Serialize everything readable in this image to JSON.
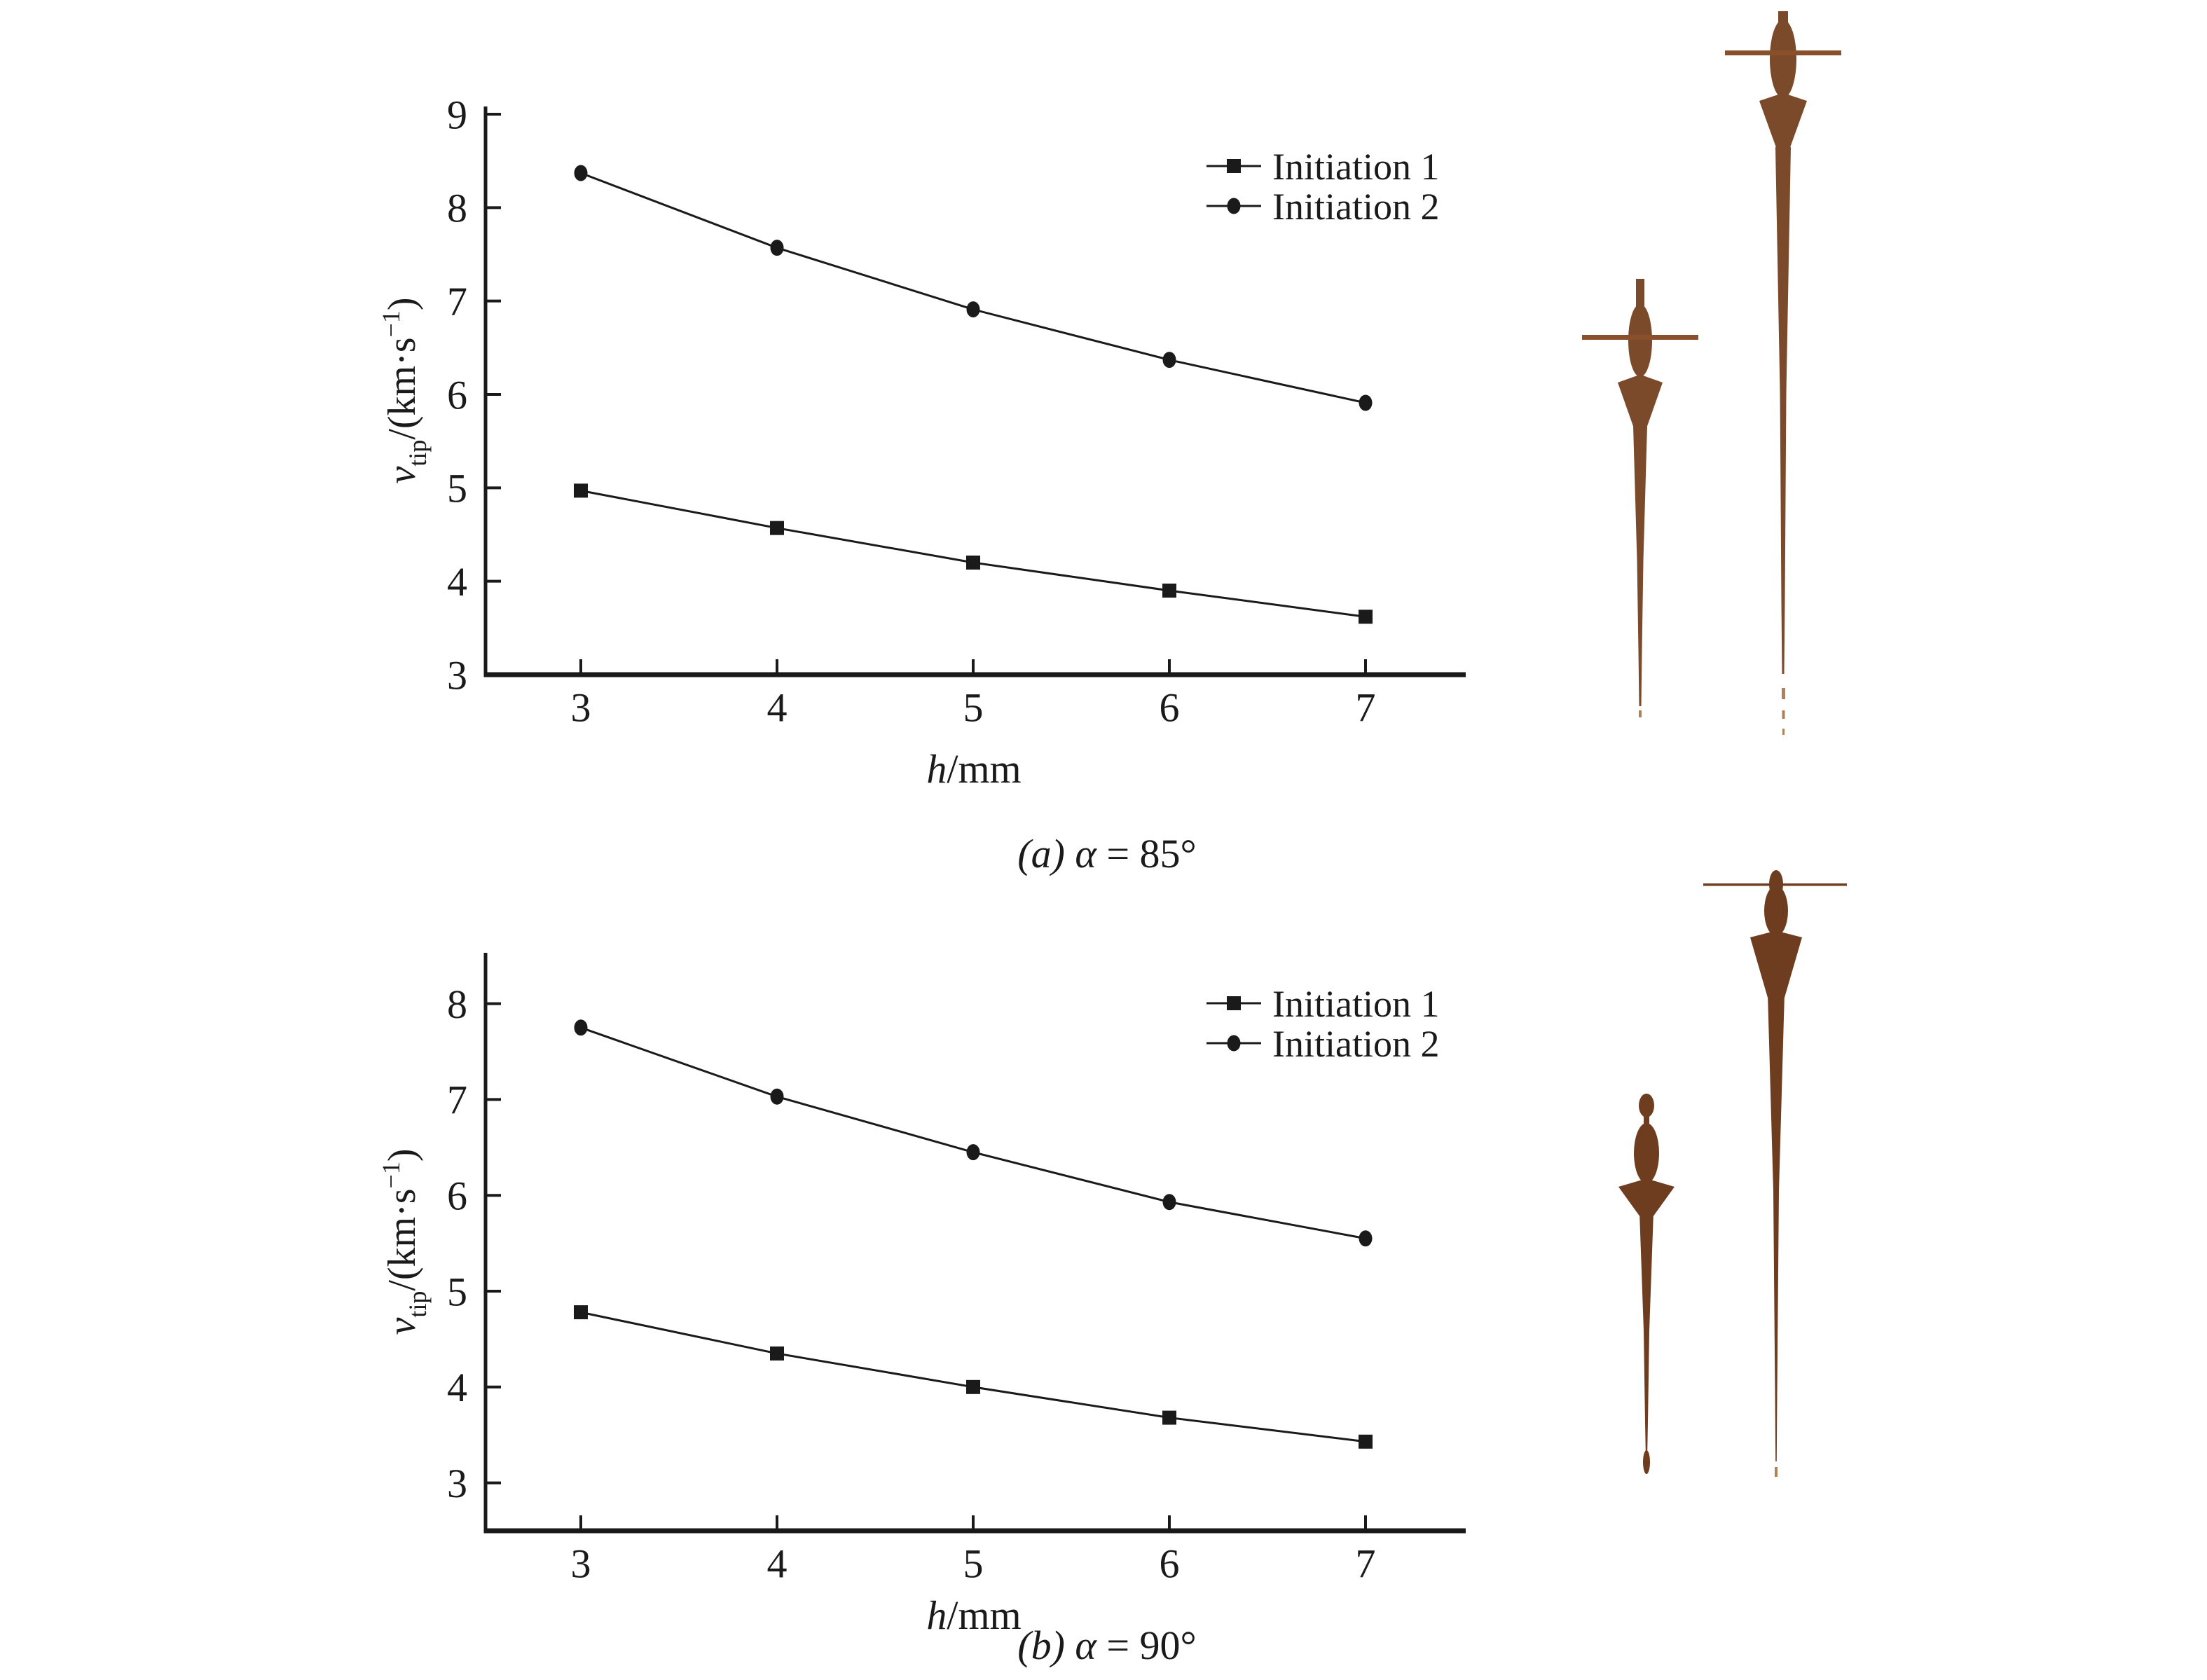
{
  "figure": {
    "background": "#ffffff",
    "text_color": "#1a1a1a"
  },
  "chart_data": [
    {
      "type": "line",
      "caption": "(a) α = 85°",
      "caption_parts": {
        "prefix": "(a) ",
        "alpha": "α",
        "suffix": " = 85°"
      },
      "xlabel": "h/mm",
      "xlabel_parts": {
        "var": "h",
        "unit": "/mm"
      },
      "ylabel": "v_tip/(km·s⁻¹)",
      "ylabel_parts": {
        "var": "v",
        "sub": "tip",
        "mid": "/(km·s",
        "sup": "−1",
        "end": ")"
      },
      "x": [
        3,
        4,
        5,
        6,
        7
      ],
      "xticks": [
        3,
        4,
        5,
        6,
        7
      ],
      "yticks": [
        3,
        4,
        5,
        6,
        7,
        8,
        9
      ],
      "xlim": [
        2.5,
        7.5
      ],
      "ylim": [
        3,
        9
      ],
      "grid": false,
      "legend_position": "upper right",
      "series": [
        {
          "name": "Initiation 1",
          "marker": "square",
          "color": "#1a1a1a",
          "values": [
            4.97,
            4.57,
            4.2,
            3.9,
            3.62
          ]
        },
        {
          "name": "Initiation 2",
          "marker": "circle",
          "color": "#1a1a1a",
          "values": [
            8.37,
            7.57,
            6.91,
            6.37,
            5.91
          ]
        }
      ]
    },
    {
      "type": "line",
      "caption": "(b) α = 90°",
      "caption_parts": {
        "prefix": "(b) ",
        "alpha": "α",
        "suffix": " = 90°"
      },
      "xlabel": "h/mm",
      "xlabel_parts": {
        "var": "h",
        "unit": "/mm"
      },
      "ylabel": "v_tip/(km·s⁻¹)",
      "ylabel_parts": {
        "var": "v",
        "sub": "tip",
        "mid": "/(km·s",
        "sup": "−1",
        "end": ")"
      },
      "x": [
        3,
        4,
        5,
        6,
        7
      ],
      "xticks": [
        3,
        4,
        5,
        6,
        7
      ],
      "yticks": [
        3,
        4,
        5,
        6,
        7,
        8
      ],
      "xlim": [
        2.5,
        7.5
      ],
      "ylim": [
        2.5,
        8.5
      ],
      "grid": false,
      "legend_position": "upper right",
      "series": [
        {
          "name": "Initiation 1",
          "marker": "square",
          "color": "#1a1a1a",
          "values": [
            4.78,
            4.35,
            4.0,
            3.68,
            3.43
          ]
        },
        {
          "name": "Initiation 2",
          "marker": "circle",
          "color": "#1a1a1a",
          "values": [
            7.75,
            7.03,
            6.45,
            5.93,
            5.55
          ]
        }
      ]
    }
  ],
  "jets": {
    "description": "copper shaped-charge jet simulation snapshots",
    "color_main_top": "#7b4a2b",
    "color_bar_top": "#8a4f2b",
    "color_light": "#b08059",
    "color_main_bottom": "#6e3d20",
    "items": [
      {
        "id": "jet-a-left",
        "description": "short jet with crossbar (α = 85°, initiation 1)"
      },
      {
        "id": "jet-a-right",
        "description": "tall jet with crossbar (α = 85°, initiation 2)"
      },
      {
        "id": "jet-b-left",
        "description": "short knobbed jet without crossbar (α = 90°, initiation 1)"
      },
      {
        "id": "jet-b-right",
        "description": "tall jet with thin crossbar (α = 90°, initiation 2)"
      }
    ]
  }
}
